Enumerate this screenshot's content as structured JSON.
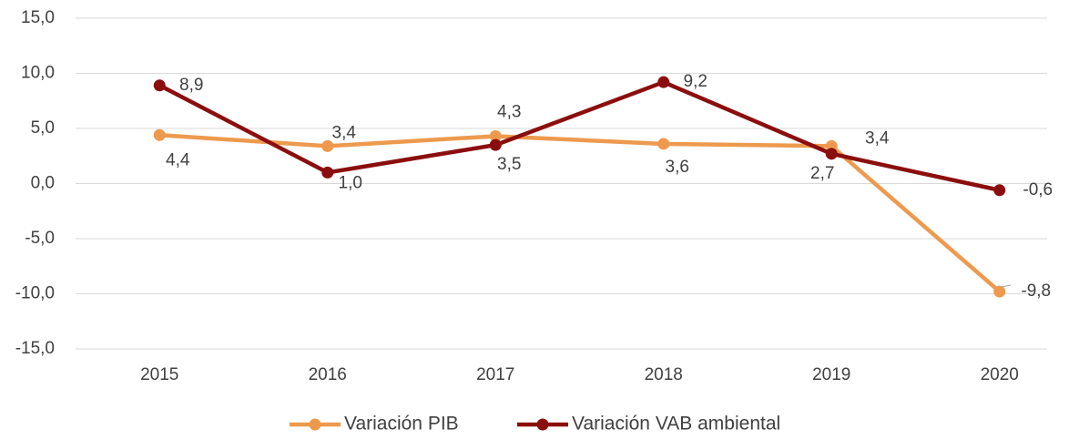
{
  "chart_data": {
    "type": "line",
    "categories": [
      "2015",
      "2016",
      "2017",
      "2018",
      "2019",
      "2020"
    ],
    "series": [
      {
        "name": "Variación PIB",
        "color": "#ed9a4e",
        "values": [
          4.4,
          3.4,
          4.3,
          3.6,
          3.4,
          -9.8
        ],
        "value_labels": [
          "4,4",
          "3,4",
          "4,3",
          "3,6",
          "3,4",
          "-9,8"
        ]
      },
      {
        "name": "Variación VAB ambiental",
        "color": "#8b0e0e",
        "values": [
          8.9,
          1.0,
          3.5,
          9.2,
          2.7,
          -0.6
        ],
        "value_labels": [
          "8,9",
          "1,0",
          "3,5",
          "9,2",
          "2,7",
          "-0,6"
        ]
      }
    ],
    "ylim": [
      -15,
      15
    ],
    "yticks": [
      {
        "value": -15,
        "label": "-15,0"
      },
      {
        "value": -10,
        "label": "-10,0"
      },
      {
        "value": -5,
        "label": "-5,0"
      },
      {
        "value": 0,
        "label": "0,0"
      },
      {
        "value": 5,
        "label": "5,0"
      },
      {
        "value": 10,
        "label": "10,0"
      },
      {
        "value": 15,
        "label": "15,0"
      }
    ],
    "grid": true,
    "legend": "bottom"
  }
}
